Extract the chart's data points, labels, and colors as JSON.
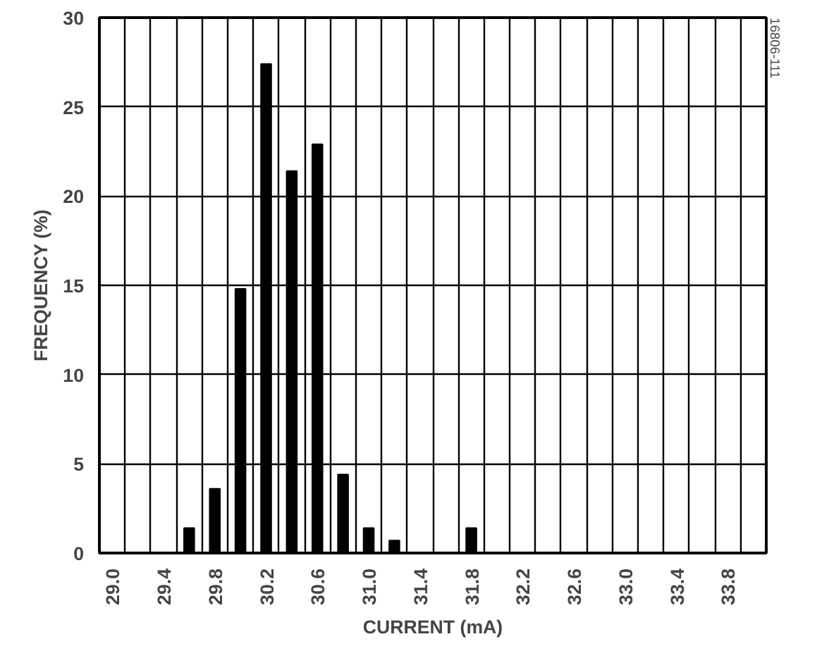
{
  "chart_data": {
    "type": "bar",
    "xlabel": "CURRENT (mA)",
    "ylabel": "FREQUENCY (%)",
    "x": [
      29.6,
      29.8,
      30.0,
      30.2,
      30.4,
      30.6,
      30.8,
      31.0,
      31.2,
      31.8
    ],
    "values": [
      1.4,
      3.6,
      14.8,
      27.4,
      21.4,
      22.9,
      4.4,
      1.4,
      0.7,
      1.4
    ],
    "color": "#000000",
    "xlim": [
      28.9,
      34.1
    ],
    "xticks": [
      {
        "value": 29.0,
        "label": "29.0"
      },
      29.4,
      29.8,
      30.2,
      30.6,
      {
        "value": 31.0,
        "label": "31.0"
      },
      31.4,
      31.8,
      32.2,
      32.6,
      {
        "value": 33.0,
        "label": "33.0"
      },
      33.4,
      33.8,
      {
        "value": 29.1,
        "label": null
      },
      {
        "value": 29.3,
        "label": null
      },
      {
        "value": 29.5,
        "label": null
      },
      {
        "value": 29.7,
        "label": null
      },
      {
        "value": 29.9,
        "label": null
      },
      {
        "value": 30.1,
        "label": null
      },
      {
        "value": 30.3,
        "label": null
      },
      {
        "value": 30.5,
        "label": null
      },
      {
        "value": 30.7,
        "label": null
      },
      {
        "value": 30.9,
        "label": null
      },
      {
        "value": 31.1,
        "label": null
      },
      {
        "value": 31.3,
        "label": null
      },
      {
        "value": 31.5,
        "label": null
      },
      {
        "value": 31.7,
        "label": null
      },
      {
        "value": 31.9,
        "label": null
      },
      {
        "value": 32.1,
        "label": null
      },
      {
        "value": 32.3,
        "label": null
      },
      {
        "value": 32.5,
        "label": null
      },
      {
        "value": 32.7,
        "label": null
      },
      {
        "value": 32.9,
        "label": null
      },
      {
        "value": 33.1,
        "label": null
      },
      {
        "value": 33.3,
        "label": null
      },
      {
        "value": 33.5,
        "label": null
      },
      {
        "value": 33.7,
        "label": null
      },
      {
        "value": 33.9,
        "label": null
      }
    ],
    "ylim": [
      0,
      30
    ],
    "yticks": [
      0,
      5,
      10,
      15,
      20,
      25,
      30
    ],
    "grid": true,
    "annotations": [
      "16806-111"
    ]
  }
}
